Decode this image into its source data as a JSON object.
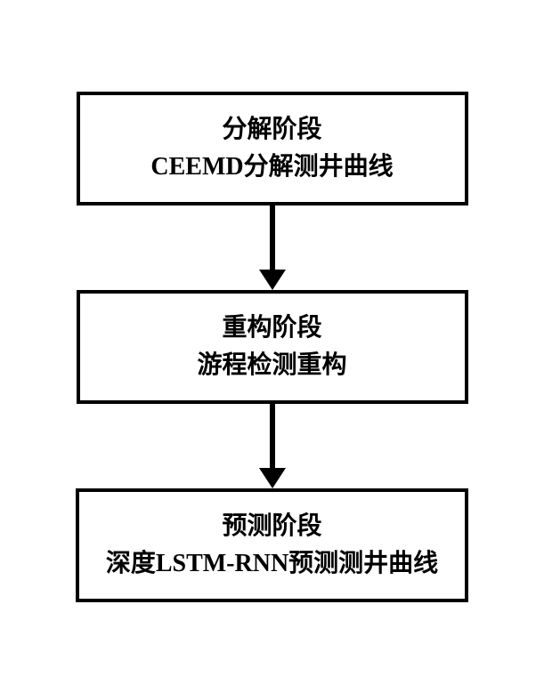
{
  "flowchart": {
    "type": "flowchart",
    "direction": "vertical",
    "background_color": "#ffffff",
    "box_border_color": "#000000",
    "box_border_width": 4,
    "box_background": "#ffffff",
    "text_color": "#000000",
    "font_size": 28,
    "font_weight": "bold",
    "arrow_color": "#000000",
    "arrow_line_width": 6,
    "arrow_head_size": 23,
    "box_min_width": 440,
    "nodes": [
      {
        "id": "box1",
        "line1": "分解阶段",
        "line2": "CEEMD分解测井曲线"
      },
      {
        "id": "box2",
        "line1": "重构阶段",
        "line2": "游程检测重构"
      },
      {
        "id": "box3",
        "line1": "预测阶段",
        "line2": "深度LSTM-RNN预测测井曲线"
      }
    ],
    "edges": [
      {
        "from": "box1",
        "to": "box2"
      },
      {
        "from": "box2",
        "to": "box3"
      }
    ]
  }
}
